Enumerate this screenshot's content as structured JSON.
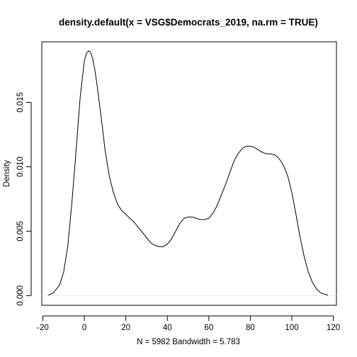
{
  "chart_data": {
    "type": "line",
    "title": "density.default(x = VSG$Democrats_2019, na.rm = TRUE)",
    "xlabel": "N = 5982   Bandwidth = 5.783",
    "ylabel": "Density",
    "xlim": [
      -20.5,
      121.5
    ],
    "ylim": [
      -0.00075,
      0.0197
    ],
    "x_ticks": [
      -20,
      0,
      20,
      40,
      60,
      80,
      100,
      120
    ],
    "y_ticks": [
      0,
      0.005,
      0.01,
      0.015
    ],
    "x_tick_labels": [
      "-20",
      "0",
      "20",
      "40",
      "60",
      "80",
      "100",
      "120"
    ],
    "y_tick_labels": [
      "0.000",
      "0.005",
      "0.010",
      "0.015"
    ],
    "grid": false,
    "legend": "none",
    "series": [
      {
        "color": "#000000",
        "x": [
          -17.35,
          -15,
          -12,
          -10,
          -8,
          -6,
          -4,
          -2,
          0,
          1,
          2,
          3,
          4,
          5,
          6,
          8,
          10,
          12,
          14,
          16,
          18,
          20,
          22,
          24,
          26,
          28,
          30,
          32,
          34,
          36,
          38,
          40,
          42,
          44,
          46,
          48,
          50,
          52,
          54,
          56,
          58,
          60,
          62,
          64,
          66,
          68,
          70,
          72,
          74,
          76,
          78,
          80,
          82,
          84,
          86,
          88,
          90,
          92,
          94,
          96,
          98,
          100,
          102,
          104,
          106,
          108,
          110,
          112,
          114,
          117.35
        ],
        "y": [
          4e-05,
          0.0002,
          0.0008,
          0.0018,
          0.0038,
          0.0072,
          0.0112,
          0.0154,
          0.0182,
          0.0188,
          0.019,
          0.0189,
          0.0184,
          0.0176,
          0.0165,
          0.014,
          0.0113,
          0.0093,
          0.008,
          0.0071,
          0.0066,
          0.0063,
          0.006,
          0.0057,
          0.0053,
          0.0049,
          0.0045,
          0.0041,
          0.0039,
          0.0038,
          0.0038,
          0.004,
          0.0044,
          0.005,
          0.0056,
          0.006,
          0.0061,
          0.0061,
          0.006,
          0.0059,
          0.0059,
          0.006,
          0.0064,
          0.007,
          0.0078,
          0.0086,
          0.0095,
          0.0104,
          0.011,
          0.0114,
          0.0116,
          0.0116,
          0.0115,
          0.0113,
          0.0111,
          0.011,
          0.011,
          0.0109,
          0.0106,
          0.0101,
          0.0093,
          0.008,
          0.0063,
          0.0045,
          0.003,
          0.0018,
          0.001,
          0.0005,
          0.0002,
          4e-05
        ]
      }
    ]
  }
}
